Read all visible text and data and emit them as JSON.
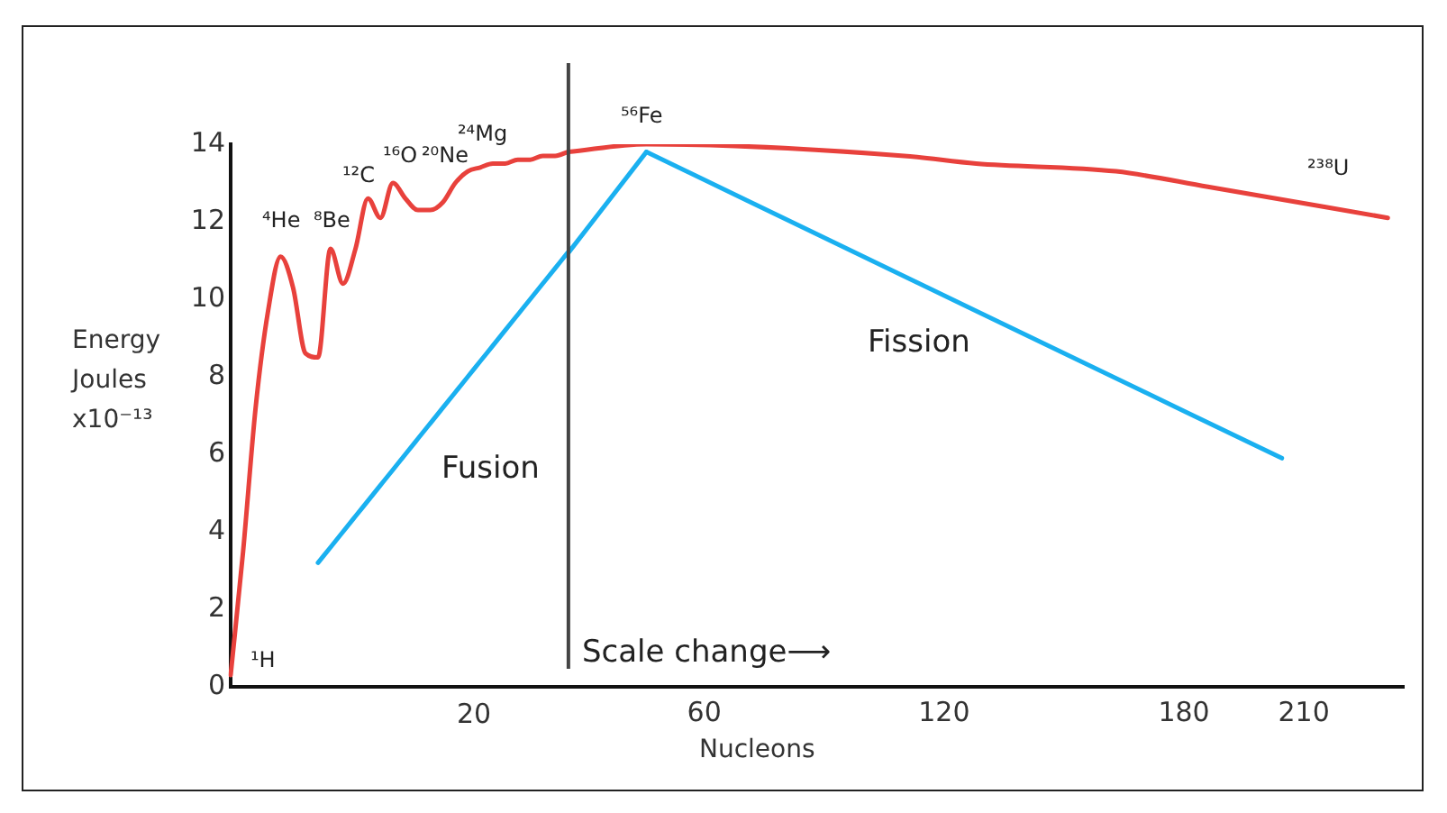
{
  "chart_data": [
    {
      "type": "line",
      "ylabel": "Energy Joules x10⁻¹³",
      "categories": [
        null,
        null,
        null,
        null,
        null,
        null,
        null,
        null,
        null,
        null,
        null,
        null,
        null,
        null,
        null,
        null,
        null,
        null,
        null,
        null,
        null,
        null,
        null,
        null,
        null,
        null,
        null,
        null
      ],
      "ylim": [
        0,
        14
      ],
      "yticks": [
        0,
        2,
        4,
        6,
        8,
        10,
        12,
        14
      ],
      "tick_labels": "y",
      "grid": false,
      "legend": false,
      "marker": "none",
      "line_style": "solid",
      "series": [
        {
          "color": "#e8413c",
          "values": [
            0.3,
            3.5,
            7.2,
            9.7,
            11.1,
            10.3,
            8.6,
            8.5,
            11.3,
            10.4,
            11.3,
            12.6,
            12.1,
            13.0,
            12.6,
            12.3,
            12.3,
            12.5,
            13.0,
            13.3,
            13.4,
            13.5,
            13.5,
            13.6,
            13.6,
            13.7,
            13.7,
            13.8
          ]
        },
        {
          "color": "#1ab0f0",
          "values": [
            null,
            null,
            null,
            null,
            null,
            null,
            null,
            3.2,
            3.6,
            4.0,
            4.4,
            4.8,
            5.2,
            5.6,
            6.0,
            6.4,
            6.8,
            7.2,
            7.6,
            8.0,
            8.4,
            8.8,
            9.2,
            9.6,
            10.0,
            10.4,
            10.8,
            11.2
          ]
        }
      ],
      "annotations": [
        "20",
        "¹H",
        "⁴He",
        "⁸Be",
        "¹²C",
        "¹⁶O",
        "²⁰Ne",
        "²⁴Mg",
        "Fusion"
      ]
    },
    {
      "type": "line",
      "xlabel": "Nucleons",
      "xlim": [
        24,
        235
      ],
      "xticks": [
        60,
        120,
        180,
        210
      ],
      "ylim": [
        0,
        14
      ],
      "tick_labels": "x",
      "grid": false,
      "legend": false,
      "marker": "none",
      "line_style": "solid",
      "series": [
        {
          "color": "#e8413c",
          "x": [
            26,
            45.5,
            110,
            128,
            163,
            186,
            231
          ],
          "values": [
            13.8,
            14.0,
            13.7,
            13.5,
            13.3,
            12.9,
            12.1
          ]
        },
        {
          "color": "#1ab0f0",
          "x": [
            26,
            45.5
          ],
          "values": [
            11.2,
            13.8
          ]
        },
        {
          "color": "#1ab0f0",
          "x": [
            45.5,
            128,
            204.5
          ],
          "values": [
            13.8,
            9.7,
            5.9
          ]
        }
      ],
      "ref_lines": [
        {
          "axis": "x",
          "value": 26,
          "color": "#444444"
        }
      ],
      "annotations": [
        "⁵⁶Fe",
        "²³⁸U",
        "Fission",
        "Scale change⟶"
      ]
    }
  ]
}
